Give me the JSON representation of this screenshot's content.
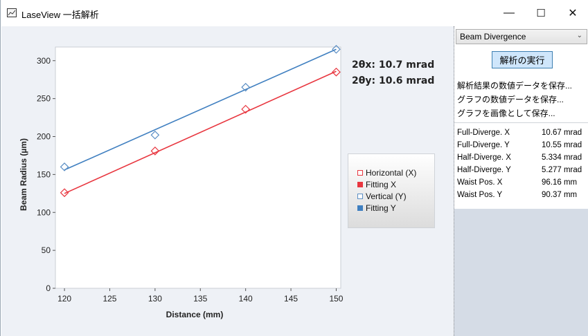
{
  "window": {
    "title": "LaseView 一括解析",
    "minimize": "—",
    "maximize": "☐",
    "close": "✕"
  },
  "divergence": {
    "x_label": "2θx: 10.7 mrad",
    "y_label": "2θy: 10.6 mrad"
  },
  "legend": [
    {
      "label": "Horizontal (X)",
      "color": "#e8363f",
      "filled": false
    },
    {
      "label": "Fitting X",
      "color": "#e8363f",
      "filled": true
    },
    {
      "label": "Vertical (Y)",
      "color": "#5b8ec4",
      "filled": false
    },
    {
      "label": "Fitting Y",
      "color": "#3f7fc0",
      "filled": true
    }
  ],
  "chart_data": {
    "type": "scatter",
    "xlabel": "Distance (mm)",
    "ylabel": "Beam Radius (µm)",
    "xlim": [
      119,
      150.5
    ],
    "ylim": [
      0,
      318
    ],
    "xticks": [
      120,
      125,
      130,
      135,
      140,
      145,
      150
    ],
    "yticks": [
      0,
      50,
      100,
      150,
      200,
      250,
      300
    ],
    "series": [
      {
        "name": "Horizontal (X)",
        "kind": "markers",
        "color": "#e8363f",
        "x": [
          120,
          130,
          140,
          150
        ],
        "y": [
          126,
          181,
          236,
          285
        ]
      },
      {
        "name": "Fitting X",
        "kind": "line",
        "color": "#e8363f",
        "x": [
          120,
          150
        ],
        "y": [
          125,
          286
        ]
      },
      {
        "name": "Vertical (Y)",
        "kind": "markers",
        "color": "#5b8ec4",
        "x": [
          120,
          130,
          140,
          150
        ],
        "y": [
          160,
          202,
          265,
          315
        ]
      },
      {
        "name": "Fitting Y",
        "kind": "line",
        "color": "#3f7fc0",
        "x": [
          120,
          150
        ],
        "y": [
          156,
          315
        ]
      }
    ]
  },
  "panel": {
    "mode": "Beam Divergence",
    "run_button": "解析の実行",
    "links": [
      "解析結果の数値データを保存...",
      "グラフの数値データを保存...",
      "グラフを画像として保存..."
    ],
    "results": [
      {
        "label": "Full-Diverge. X",
        "value": "10.67 mrad"
      },
      {
        "label": "Full-Diverge. Y",
        "value": "10.55 mrad"
      },
      {
        "label": "Half-Diverge. X",
        "value": "5.334 mrad"
      },
      {
        "label": "Half-Diverge. Y",
        "value": "5.277 mrad"
      },
      {
        "label": "Waist Pos. X",
        "value": "96.16 mm"
      },
      {
        "label": "Waist Pos. Y",
        "value": "90.37 mm"
      }
    ]
  }
}
